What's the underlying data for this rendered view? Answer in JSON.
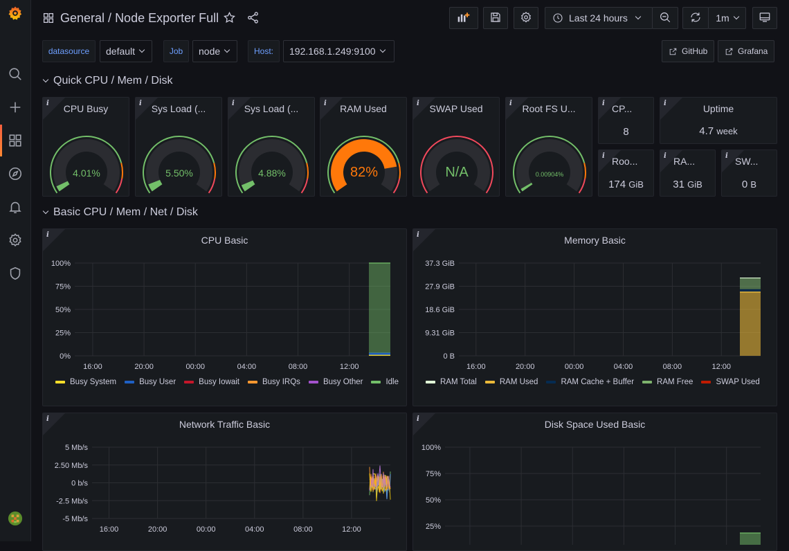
{
  "header": {
    "folder": "General",
    "separator": " / ",
    "dashboard": "Node Exporter Full",
    "time_range": "Last 24 hours",
    "refresh": "1m"
  },
  "icons": {
    "sidebar": [
      "grafana-logo-icon",
      "search-icon",
      "plus-icon",
      "dashboards-icon",
      "explore-compass-icon",
      "alerting-bell-icon",
      "settings-gear-icon",
      "shield-icon",
      "user-avatar-icon"
    ],
    "toolbar": [
      "add-panel-icon",
      "save-icon",
      "settings-gear-icon",
      "clock-icon",
      "zoom-out-icon",
      "refresh-icon",
      "tv-mode-icon",
      "star-icon",
      "share-icon"
    ]
  },
  "variables": [
    {
      "label": "datasource",
      "value": "default"
    },
    {
      "label": "Job",
      "value": "node"
    },
    {
      "label": "Host:",
      "value": "192.168.1.249:9100"
    }
  ],
  "links": [
    {
      "label": "GitHub"
    },
    {
      "label": "Grafana"
    }
  ],
  "rows": [
    {
      "title": "Quick CPU / Mem / Disk"
    },
    {
      "title": "Basic CPU / Mem / Net / Disk"
    }
  ],
  "gauges": [
    {
      "title": "CPU Busy",
      "value": "4.01%",
      "percent": 4.01,
      "color": "#73bf69"
    },
    {
      "title": "Sys Load (...",
      "value": "5.50%",
      "percent": 5.5,
      "color": "#73bf69"
    },
    {
      "title": "Sys Load (...",
      "value": "4.88%",
      "percent": 4.88,
      "color": "#73bf69"
    },
    {
      "title": "RAM Used",
      "value": "82%",
      "percent": 82,
      "color": "#ff780a"
    },
    {
      "title": "SWAP Used",
      "value": "N/A",
      "percent": 0,
      "color": "#73bf69"
    },
    {
      "title": "Root FS U...",
      "value": "0.00904%",
      "percent": 0.00904,
      "color": "#73bf69"
    }
  ],
  "stats": [
    {
      "title": "CP...",
      "value": "8",
      "unit": ""
    },
    {
      "title": "Uptime",
      "value": "4.7",
      "unit": "week"
    },
    {
      "title": "Roo...",
      "value": "174",
      "unit": "GiB"
    },
    {
      "title": "RA...",
      "value": "31",
      "unit": "GiB"
    },
    {
      "title": "SW...",
      "value": "0",
      "unit": "B"
    }
  ],
  "colors": {
    "green": "#73bf69",
    "orange": "#ff780a",
    "yellow": "#fade2a",
    "red": "#f2495c",
    "blue": "#5794f2"
  },
  "chart_data": [
    {
      "type": "area",
      "title": "CPU Basic",
      "x_ticks": [
        "16:00",
        "20:00",
        "00:00",
        "04:00",
        "08:00",
        "12:00"
      ],
      "y_ticks": [
        "100%",
        "75%",
        "50%",
        "25%",
        "0%"
      ],
      "ylim": [
        0,
        100
      ],
      "series": [
        {
          "name": "Busy System",
          "color": "#fade2a",
          "values": [
            1
          ]
        },
        {
          "name": "Busy User",
          "color": "#1f60c4",
          "values": [
            2
          ]
        },
        {
          "name": "Busy Iowait",
          "color": "#c4162a",
          "values": [
            0
          ]
        },
        {
          "name": "Busy IRQs",
          "color": "#ff9830",
          "values": [
            0
          ]
        },
        {
          "name": "Busy Other",
          "color": "#a352cc",
          "values": [
            0
          ]
        },
        {
          "name": "Idle",
          "color": "#73bf69",
          "values": [
            97
          ]
        }
      ]
    },
    {
      "type": "area",
      "title": "Memory Basic",
      "x_ticks": [
        "16:00",
        "20:00",
        "00:00",
        "04:00",
        "08:00",
        "12:00"
      ],
      "y_ticks": [
        "37.3 GiB",
        "27.9 GiB",
        "18.6 GiB",
        "9.31 GiB",
        "0 B"
      ],
      "ylim": [
        0,
        37.3
      ],
      "series": [
        {
          "name": "RAM Total",
          "color": "#e0f9d7",
          "values": [
            31.3
          ]
        },
        {
          "name": "RAM Used",
          "color": "#eab839",
          "values": [
            25.6
          ]
        },
        {
          "name": "RAM Cache + Buffer",
          "color": "#052b51",
          "values": [
            1.2
          ]
        },
        {
          "name": "RAM Free",
          "color": "#7eb26d",
          "values": [
            4.5
          ]
        },
        {
          "name": "SWAP Used",
          "color": "#bf1b00",
          "values": [
            0
          ]
        }
      ]
    },
    {
      "type": "line",
      "title": "Network Traffic Basic",
      "x_ticks": [
        "16:00",
        "20:00",
        "00:00",
        "04:00",
        "08:00",
        "12:00"
      ],
      "y_ticks": [
        "5 Mb/s",
        "2.50 Mb/s",
        "0 b/s",
        "-2.5 Mb/s",
        "-5 Mb/s"
      ],
      "ylim": [
        -5,
        5
      ]
    },
    {
      "type": "area",
      "title": "Disk Space Used Basic",
      "x_ticks": [],
      "y_ticks": [
        "100%",
        "75%",
        "50%",
        "25%"
      ],
      "ylim": [
        0,
        100
      ]
    }
  ]
}
